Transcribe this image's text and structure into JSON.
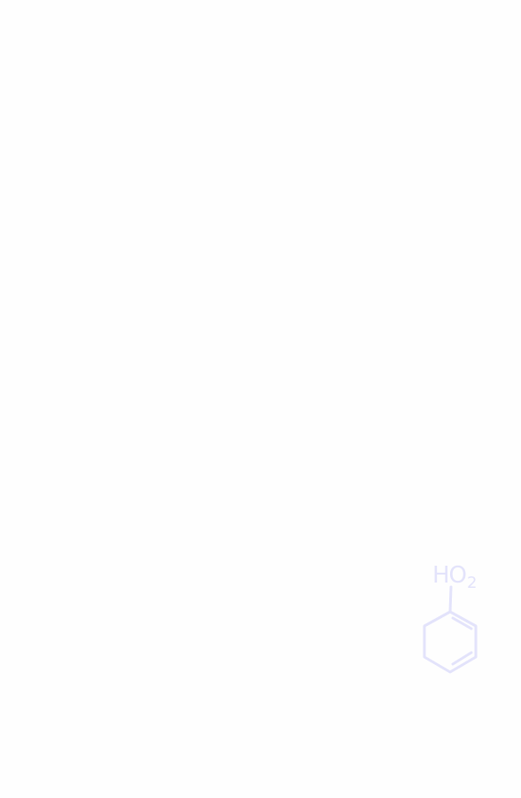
{
  "doodle": {
    "label_main": "HO",
    "label_subscript": "2",
    "icon": "benzene-ring-icon",
    "stroke_color": "#e3e3fb"
  }
}
